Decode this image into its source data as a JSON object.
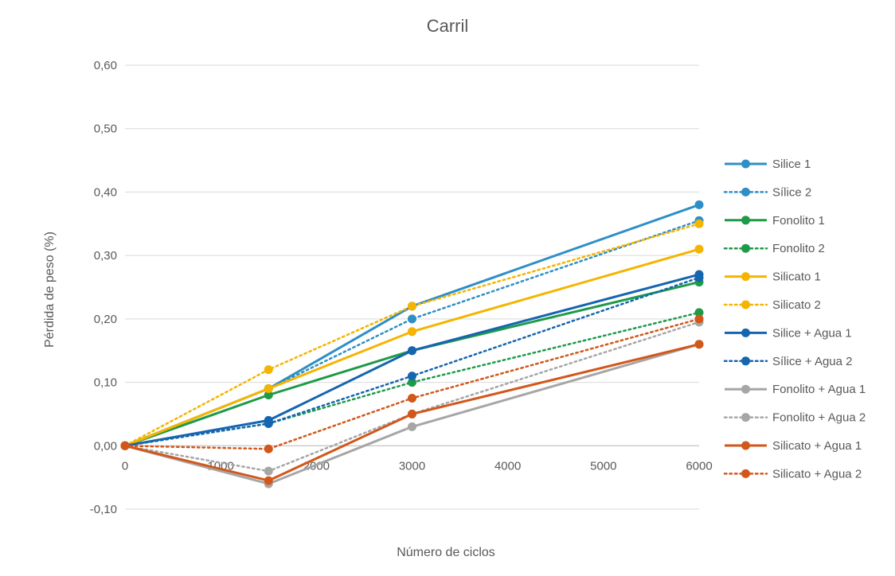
{
  "chart_data": {
    "type": "line",
    "title": "Carril",
    "xlabel": "Número de ciclos",
    "ylabel": "Pérdida de peso (%)",
    "xlim": [
      0,
      6000
    ],
    "ylim": [
      -0.1,
      0.6
    ],
    "x_ticks": [
      0,
      1000,
      2000,
      3000,
      4000,
      5000,
      6000
    ],
    "x_tick_labels": [
      "0",
      "1000",
      "2000",
      "3000",
      "4000",
      "5000",
      "6000"
    ],
    "y_ticks": [
      -0.1,
      0,
      0.1,
      0.2,
      0.3,
      0.4,
      0.5,
      0.6
    ],
    "y_tick_labels": [
      "-0,10",
      "0,00",
      "0,10",
      "0,20",
      "0,30",
      "0,40",
      "0,50",
      "0,60"
    ],
    "grid": "horizontal",
    "legend_position": "right",
    "x": [
      0,
      1500,
      3000,
      6000
    ],
    "series": [
      {
        "name": "Silice 1",
        "values": [
          0,
          0.09,
          0.22,
          0.38
        ],
        "color": "#2E8FC7",
        "style": "solid"
      },
      {
        "name": "Sílice 2",
        "values": [
          0,
          0.09,
          0.2,
          0.355
        ],
        "color": "#2E8FC7",
        "style": "dotted"
      },
      {
        "name": "Fonolito 1",
        "values": [
          0,
          0.08,
          0.15,
          0.258
        ],
        "color": "#1E9A48",
        "style": "solid"
      },
      {
        "name": "Fonolito 2",
        "values": [
          0,
          0.035,
          0.1,
          0.21
        ],
        "color": "#1E9A48",
        "style": "dotted"
      },
      {
        "name": "Silicato 1",
        "values": [
          0,
          0.09,
          0.18,
          0.31
        ],
        "color": "#F5B400",
        "style": "solid"
      },
      {
        "name": "Silicato 2",
        "values": [
          0,
          0.12,
          0.22,
          0.35
        ],
        "color": "#F5B400",
        "style": "dotted"
      },
      {
        "name": "Silice + Agua 1",
        "values": [
          0,
          0.04,
          0.15,
          0.27
        ],
        "color": "#1565B0",
        "style": "solid"
      },
      {
        "name": "Sílice + Agua 2",
        "values": [
          0,
          0.035,
          0.11,
          0.265
        ],
        "color": "#1565B0",
        "style": "dotted"
      },
      {
        "name": "Fonolito + Agua 1",
        "values": [
          0,
          -0.06,
          0.03,
          0.16
        ],
        "color": "#A6A6A6",
        "style": "solid"
      },
      {
        "name": "Fonolito + Agua 2",
        "values": [
          0,
          -0.04,
          0.05,
          0.195
        ],
        "color": "#A6A6A6",
        "style": "dotted"
      },
      {
        "name": "Silicato + Agua 1",
        "values": [
          0,
          -0.055,
          0.05,
          0.16
        ],
        "color": "#D2571B",
        "style": "solid"
      },
      {
        "name": "Silicato + Agua 2",
        "values": [
          0,
          -0.005,
          0.075,
          0.2
        ],
        "color": "#D2571B",
        "style": "dotted"
      }
    ]
  }
}
